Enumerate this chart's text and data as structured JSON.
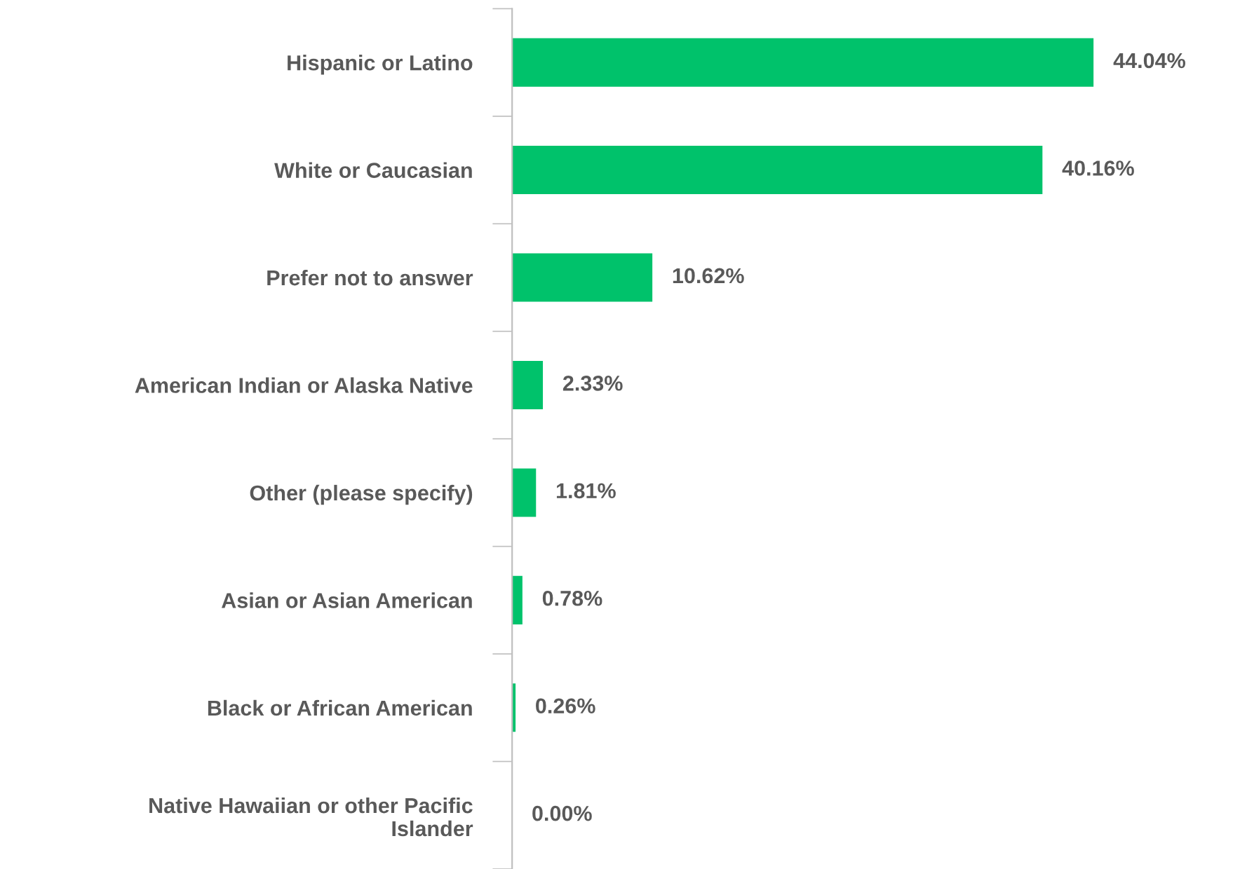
{
  "chart_data": {
    "type": "bar",
    "orientation": "horizontal",
    "categories": [
      "Hispanic or Latino",
      "White or Caucasian",
      "Prefer not to answer",
      "American Indian or Alaska Native",
      "Other (please specify)",
      "Asian or Asian American",
      "Black or African American",
      "Native Hawaiian or other Pacific Islander"
    ],
    "values": [
      44.04,
      40.16,
      10.62,
      2.33,
      1.81,
      0.78,
      0.26,
      0.0
    ],
    "value_labels": [
      "44.04%",
      "40.16%",
      "10.62%",
      "2.33%",
      "1.81%",
      "0.78%",
      "0.26%",
      "0.00%"
    ],
    "color": "#00c26b",
    "tick_labels": "y",
    "grid": false
  }
}
